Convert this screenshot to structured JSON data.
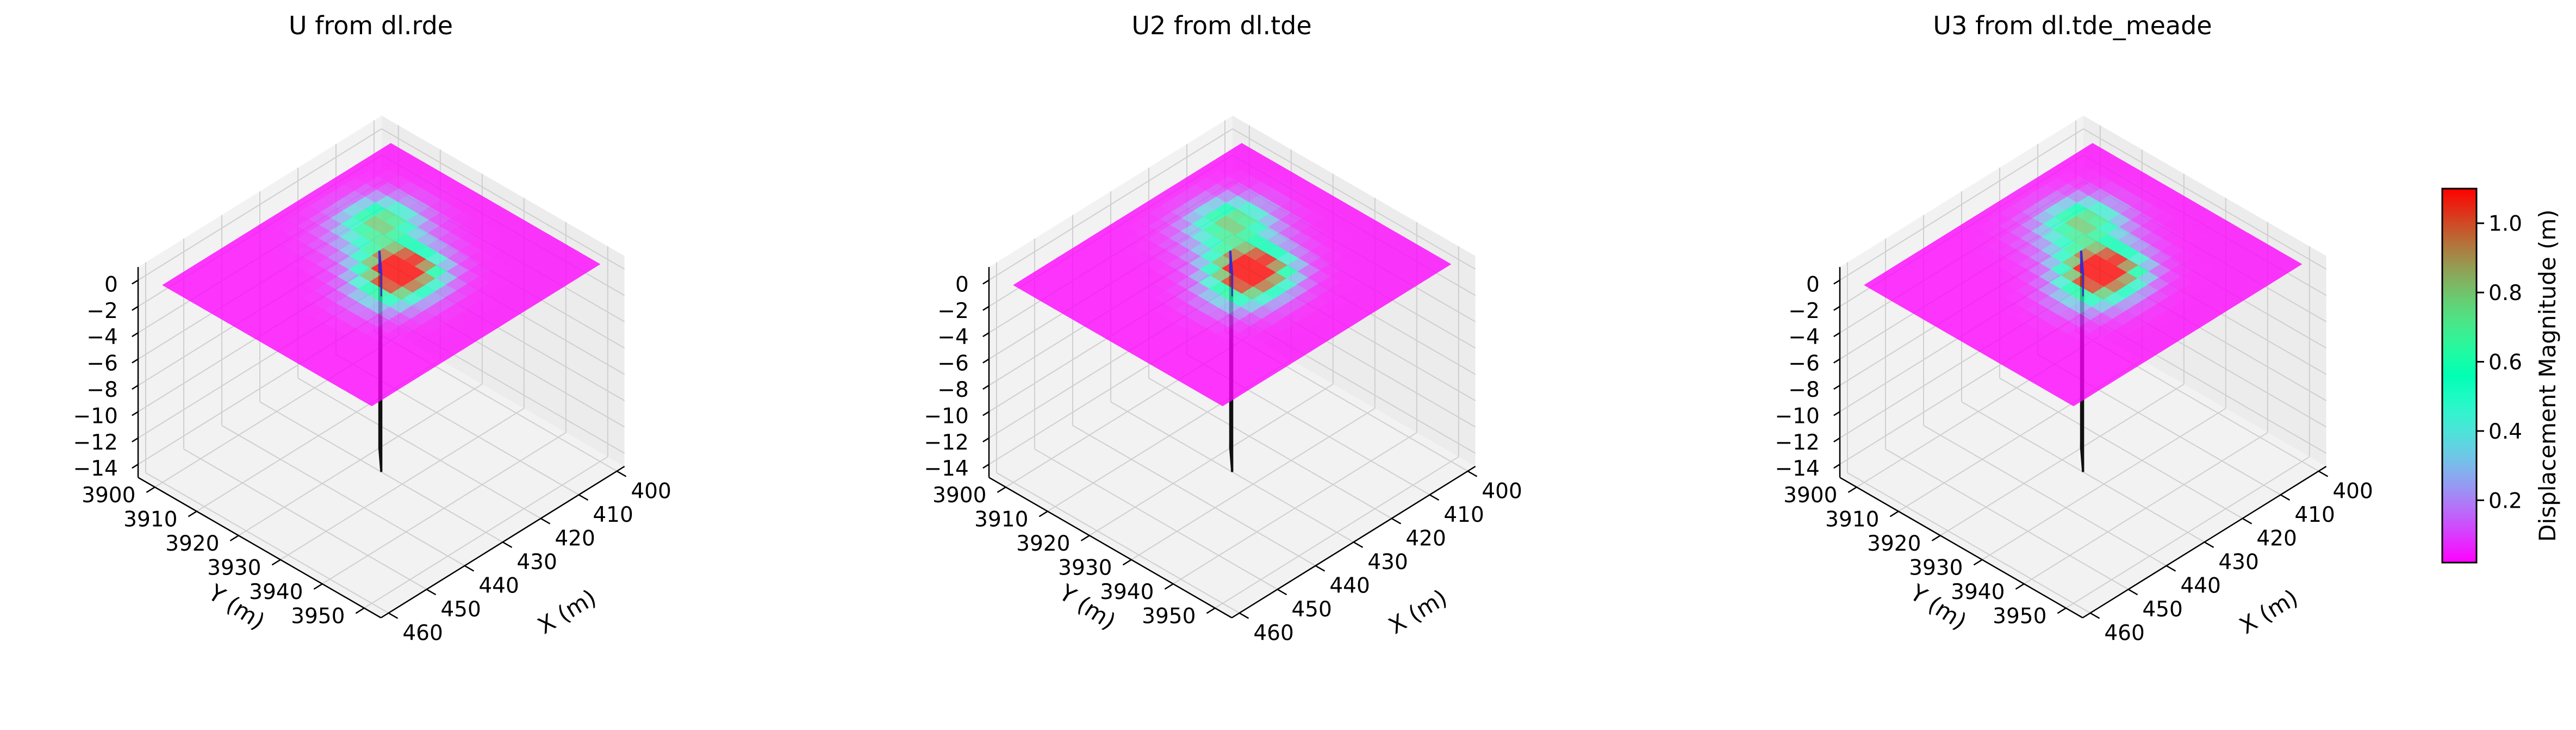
{
  "chart_data": [
    {
      "type": "surface3d",
      "title": "U from dl.rde",
      "xlabel": "X (m)",
      "ylabel": "Y (m)",
      "zlabel": "",
      "xlim": [
        398,
        462
      ],
      "ylim": [
        3896,
        3954
      ],
      "zlim": [
        -15,
        1
      ],
      "x_ticks": [
        400,
        410,
        420,
        430,
        440,
        450,
        460
      ],
      "y_ticks": [
        3900,
        3910,
        3920,
        3930,
        3940,
        3950
      ],
      "z_ticks": [
        0,
        -2,
        -4,
        -6,
        -8,
        -10,
        -12,
        -14
      ],
      "surface_z": 0,
      "surface_extent": {
        "x": [
          400,
          460
        ],
        "y": [
          3900,
          3950
        ]
      },
      "fault_mesh": "rectangle"
    },
    {
      "type": "surface3d",
      "title": "U2 from dl.tde",
      "xlabel": "X (m)",
      "ylabel": "Y (m)",
      "zlabel": "",
      "xlim": [
        398,
        462
      ],
      "ylim": [
        3896,
        3954
      ],
      "zlim": [
        -15,
        1
      ],
      "x_ticks": [
        400,
        410,
        420,
        430,
        440,
        450,
        460
      ],
      "y_ticks": [
        3900,
        3910,
        3920,
        3930,
        3940,
        3950
      ],
      "z_ticks": [
        0,
        -2,
        -4,
        -6,
        -8,
        -10,
        -12,
        -14
      ],
      "surface_z": 0,
      "surface_extent": {
        "x": [
          400,
          460
        ],
        "y": [
          3900,
          3950
        ]
      },
      "fault_mesh": "two-triangles"
    },
    {
      "type": "surface3d",
      "title": "U3 from dl.tde_meade",
      "xlabel": "X (m)",
      "ylabel": "Y (m)",
      "zlabel": "",
      "xlim": [
        398,
        462
      ],
      "ylim": [
        3896,
        3954
      ],
      "zlim": [
        -15,
        1
      ],
      "x_ticks": [
        400,
        410,
        420,
        430,
        440,
        450,
        460
      ],
      "y_ticks": [
        3900,
        3910,
        3920,
        3930,
        3940,
        3950
      ],
      "z_ticks": [
        0,
        -2,
        -4,
        -6,
        -8,
        -10,
        -12,
        -14
      ],
      "surface_z": 0,
      "surface_extent": {
        "x": [
          400,
          460
        ],
        "y": [
          3900,
          3950
        ]
      },
      "fault_mesh": "two-triangles"
    }
  ],
  "fault": {
    "corners": [
      {
        "x": 425,
        "y": 3920,
        "z": 0
      },
      {
        "x": 430,
        "y": 3925,
        "z": 0
      },
      {
        "x": 430,
        "y": 3925,
        "z": -15
      },
      {
        "x": 425,
        "y": 3920,
        "z": -15
      }
    ]
  },
  "displacement_field": {
    "peaks": [
      {
        "x": 426,
        "y": 3926,
        "amp": 1.1,
        "sx": 4.5,
        "sy": 4.5
      },
      {
        "x": 431,
        "y": 3929,
        "amp": 0.55,
        "sx": 5.5,
        "sy": 4.5
      },
      {
        "x": 418,
        "y": 3914,
        "amp": 0.55,
        "sx": 4.5,
        "sy": 4.0
      },
      {
        "x": 422,
        "y": 3917,
        "amp": 0.3,
        "sx": 6.0,
        "sy": 6.0
      }
    ],
    "grid_n": 20
  },
  "colorbar": {
    "label": "Displacement Magnitude (m)",
    "min": 0.02,
    "max": 1.1,
    "ticks": [
      0.2,
      0.4,
      0.6,
      0.8,
      1.0
    ],
    "tick_labels": [
      "0.2",
      "0.4",
      "0.6",
      "0.8",
      "1.0"
    ],
    "colormap": "rainbow"
  },
  "colors": {
    "pane": "#f2f2f2",
    "pane_side": "#ececec",
    "grid": "#cfcfcf",
    "fault_fill": "#c9e6ee",
    "fault_edge": "#111111",
    "fault_top": "#3a2bd0"
  }
}
